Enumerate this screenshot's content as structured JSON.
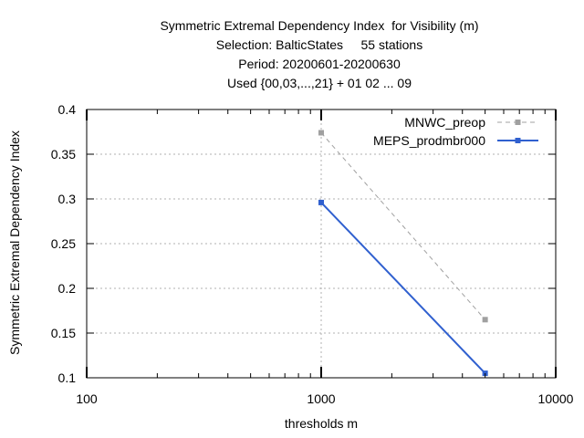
{
  "chart_data": {
    "type": "line",
    "title_lines": [
      "Symmetric Extremal Dependency Index  for Visibility (m)",
      "Selection: BalticStates     55 stations",
      "Period: 20200601-20200630",
      "Used {00,03,...,21} + 01 02 ... 09"
    ],
    "xlabel": "thresholds m",
    "ylabel": "Symmetric Extremal Dependency Index",
    "x_scale": "log",
    "xlim": [
      100,
      10000
    ],
    "ylim": [
      0.1,
      0.4
    ],
    "x_ticks": [
      100,
      1000,
      10000
    ],
    "y_ticks": [
      0.1,
      0.15,
      0.2,
      0.25,
      0.3,
      0.35,
      0.4
    ],
    "x_tick_labels": [
      "100",
      "1000",
      "10000"
    ],
    "y_tick_labels": [
      "0.1",
      "0.15",
      "0.2",
      "0.25",
      "0.3",
      "0.35",
      "0.4"
    ],
    "grid": true,
    "legend_position": "top-right",
    "series": [
      {
        "name": "MNWC_preop",
        "color": "#a0a0a0",
        "dash": true,
        "x": [
          1000,
          5000
        ],
        "y": [
          0.374,
          0.165
        ]
      },
      {
        "name": "MEPS_prodmbr000",
        "color": "#3060cf",
        "dash": false,
        "x": [
          1000,
          5000
        ],
        "y": [
          0.296,
          0.105
        ]
      }
    ]
  }
}
